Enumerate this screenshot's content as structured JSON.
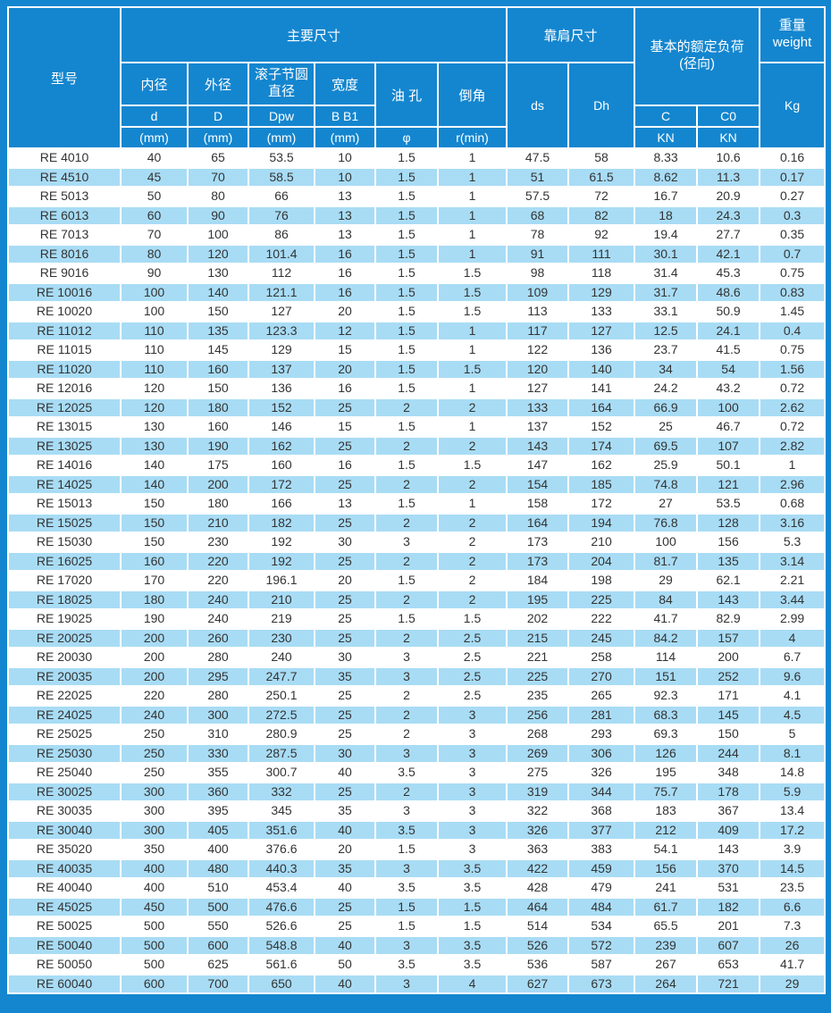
{
  "colors": {
    "header_blue": "#1486cf",
    "stripe_blue": "#a8dcf5",
    "grid_white": "#ffffff",
    "header_text": "#ffffff",
    "body_text": "#333333"
  },
  "table": {
    "header": {
      "model": "型号",
      "main_dims": "主要尺寸",
      "shoulder_dims": "靠肩尺寸",
      "rated_load_line1": "基本的额定负荷",
      "rated_load_line2": "(径向)",
      "weight_line1": "重量",
      "weight_line2": "weight",
      "inner_dia": "内径",
      "inner_sym": "d",
      "outer_dia": "外径",
      "outer_sym": "D",
      "pitch_line1": "滚子节圆",
      "pitch_line2": "直径",
      "pitch_sym": "Dpw",
      "width_name": "宽度",
      "width_sym": "B B1",
      "oil_hole": "油 孔",
      "oil_sym": "φ",
      "chamfer": "倒角",
      "chamfer_sym": "r(min)",
      "mm_unit": "(mm)",
      "ds": "ds",
      "dh": "Dh",
      "c": "C",
      "c0": "C0",
      "kn": "KN",
      "kg": "Kg"
    },
    "rows": [
      [
        "RE 4010",
        "40",
        "65",
        "53.5",
        "10",
        "1.5",
        "1",
        "47.5",
        "58",
        "8.33",
        "10.6",
        "0.16"
      ],
      [
        "RE 4510",
        "45",
        "70",
        "58.5",
        "10",
        "1.5",
        "1",
        "51",
        "61.5",
        "8.62",
        "11.3",
        "0.17"
      ],
      [
        "RE 5013",
        "50",
        "80",
        "66",
        "13",
        "1.5",
        "1",
        "57.5",
        "72",
        "16.7",
        "20.9",
        "0.27"
      ],
      [
        "RE 6013",
        "60",
        "90",
        "76",
        "13",
        "1.5",
        "1",
        "68",
        "82",
        "18",
        "24.3",
        "0.3"
      ],
      [
        "RE 7013",
        "70",
        "100",
        "86",
        "13",
        "1.5",
        "1",
        "78",
        "92",
        "19.4",
        "27.7",
        "0.35"
      ],
      [
        "RE 8016",
        "80",
        "120",
        "101.4",
        "16",
        "1.5",
        "1",
        "91",
        "111",
        "30.1",
        "42.1",
        "0.7"
      ],
      [
        "RE 9016",
        "90",
        "130",
        "112",
        "16",
        "1.5",
        "1.5",
        "98",
        "118",
        "31.4",
        "45.3",
        "0.75"
      ],
      [
        "RE 10016",
        "100",
        "140",
        "121.1",
        "16",
        "1.5",
        "1.5",
        "109",
        "129",
        "31.7",
        "48.6",
        "0.83"
      ],
      [
        "RE 10020",
        "100",
        "150",
        "127",
        "20",
        "1.5",
        "1.5",
        "113",
        "133",
        "33.1",
        "50.9",
        "1.45"
      ],
      [
        "RE 11012",
        "110",
        "135",
        "123.3",
        "12",
        "1.5",
        "1",
        "117",
        "127",
        "12.5",
        "24.1",
        "0.4"
      ],
      [
        "RE 11015",
        "110",
        "145",
        "129",
        "15",
        "1.5",
        "1",
        "122",
        "136",
        "23.7",
        "41.5",
        "0.75"
      ],
      [
        "RE 11020",
        "110",
        "160",
        "137",
        "20",
        "1.5",
        "1.5",
        "120",
        "140",
        "34",
        "54",
        "1.56"
      ],
      [
        "RE 12016",
        "120",
        "150",
        "136",
        "16",
        "1.5",
        "1",
        "127",
        "141",
        "24.2",
        "43.2",
        "0.72"
      ],
      [
        "RE 12025",
        "120",
        "180",
        "152",
        "25",
        "2",
        "2",
        "133",
        "164",
        "66.9",
        "100",
        "2.62"
      ],
      [
        "RE 13015",
        "130",
        "160",
        "146",
        "15",
        "1.5",
        "1",
        "137",
        "152",
        "25",
        "46.7",
        "0.72"
      ],
      [
        "RE 13025",
        "130",
        "190",
        "162",
        "25",
        "2",
        "2",
        "143",
        "174",
        "69.5",
        "107",
        "2.82"
      ],
      [
        "RE 14016",
        "140",
        "175",
        "160",
        "16",
        "1.5",
        "1.5",
        "147",
        "162",
        "25.9",
        "50.1",
        "1"
      ],
      [
        "RE 14025",
        "140",
        "200",
        "172",
        "25",
        "2",
        "2",
        "154",
        "185",
        "74.8",
        "121",
        "2.96"
      ],
      [
        "RE 15013",
        "150",
        "180",
        "166",
        "13",
        "1.5",
        "1",
        "158",
        "172",
        "27",
        "53.5",
        "0.68"
      ],
      [
        "RE 15025",
        "150",
        "210",
        "182",
        "25",
        "2",
        "2",
        "164",
        "194",
        "76.8",
        "128",
        "3.16"
      ],
      [
        "RE 15030",
        "150",
        "230",
        "192",
        "30",
        "3",
        "2",
        "173",
        "210",
        "100",
        "156",
        "5.3"
      ],
      [
        "RE 16025",
        "160",
        "220",
        "192",
        "25",
        "2",
        "2",
        "173",
        "204",
        "81.7",
        "135",
        "3.14"
      ],
      [
        "RE 17020",
        "170",
        "220",
        "196.1",
        "20",
        "1.5",
        "2",
        "184",
        "198",
        "29",
        "62.1",
        "2.21"
      ],
      [
        "RE 18025",
        "180",
        "240",
        "210",
        "25",
        "2",
        "2",
        "195",
        "225",
        "84",
        "143",
        "3.44"
      ],
      [
        "RE 19025",
        "190",
        "240",
        "219",
        "25",
        "1.5",
        "1.5",
        "202",
        "222",
        "41.7",
        "82.9",
        "2.99"
      ],
      [
        "RE 20025",
        "200",
        "260",
        "230",
        "25",
        "2",
        "2.5",
        "215",
        "245",
        "84.2",
        "157",
        "4"
      ],
      [
        "RE 20030",
        "200",
        "280",
        "240",
        "30",
        "3",
        "2.5",
        "221",
        "258",
        "114",
        "200",
        "6.7"
      ],
      [
        "RE 20035",
        "200",
        "295",
        "247.7",
        "35",
        "3",
        "2.5",
        "225",
        "270",
        "151",
        "252",
        "9.6"
      ],
      [
        "RE 22025",
        "220",
        "280",
        "250.1",
        "25",
        "2",
        "2.5",
        "235",
        "265",
        "92.3",
        "171",
        "4.1"
      ],
      [
        "RE 24025",
        "240",
        "300",
        "272.5",
        "25",
        "2",
        "3",
        "256",
        "281",
        "68.3",
        "145",
        "4.5"
      ],
      [
        "RE 25025",
        "250",
        "310",
        "280.9",
        "25",
        "2",
        "3",
        "268",
        "293",
        "69.3",
        "150",
        "5"
      ],
      [
        "RE 25030",
        "250",
        "330",
        "287.5",
        "30",
        "3",
        "3",
        "269",
        "306",
        "126",
        "244",
        "8.1"
      ],
      [
        "RE 25040",
        "250",
        "355",
        "300.7",
        "40",
        "3.5",
        "3",
        "275",
        "326",
        "195",
        "348",
        "14.8"
      ],
      [
        "RE 30025",
        "300",
        "360",
        "332",
        "25",
        "2",
        "3",
        "319",
        "344",
        "75.7",
        "178",
        "5.9"
      ],
      [
        "RE 30035",
        "300",
        "395",
        "345",
        "35",
        "3",
        "3",
        "322",
        "368",
        "183",
        "367",
        "13.4"
      ],
      [
        "RE 30040",
        "300",
        "405",
        "351.6",
        "40",
        "3.5",
        "3",
        "326",
        "377",
        "212",
        "409",
        "17.2"
      ],
      [
        "RE 35020",
        "350",
        "400",
        "376.6",
        "20",
        "1.5",
        "3",
        "363",
        "383",
        "54.1",
        "143",
        "3.9"
      ],
      [
        "RE 40035",
        "400",
        "480",
        "440.3",
        "35",
        "3",
        "3.5",
        "422",
        "459",
        "156",
        "370",
        "14.5"
      ],
      [
        "RE 40040",
        "400",
        "510",
        "453.4",
        "40",
        "3.5",
        "3.5",
        "428",
        "479",
        "241",
        "531",
        "23.5"
      ],
      [
        "RE 45025",
        "450",
        "500",
        "476.6",
        "25",
        "1.5",
        "1.5",
        "464",
        "484",
        "61.7",
        "182",
        "6.6"
      ],
      [
        "RE 50025",
        "500",
        "550",
        "526.6",
        "25",
        "1.5",
        "1.5",
        "514",
        "534",
        "65.5",
        "201",
        "7.3"
      ],
      [
        "RE 50040",
        "500",
        "600",
        "548.8",
        "40",
        "3",
        "3.5",
        "526",
        "572",
        "239",
        "607",
        "26"
      ],
      [
        "RE 50050",
        "500",
        "625",
        "561.6",
        "50",
        "3.5",
        "3.5",
        "536",
        "587",
        "267",
        "653",
        "41.7"
      ],
      [
        "RE 60040",
        "600",
        "700",
        "650",
        "40",
        "3",
        "4",
        "627",
        "673",
        "264",
        "721",
        "29"
      ]
    ]
  }
}
